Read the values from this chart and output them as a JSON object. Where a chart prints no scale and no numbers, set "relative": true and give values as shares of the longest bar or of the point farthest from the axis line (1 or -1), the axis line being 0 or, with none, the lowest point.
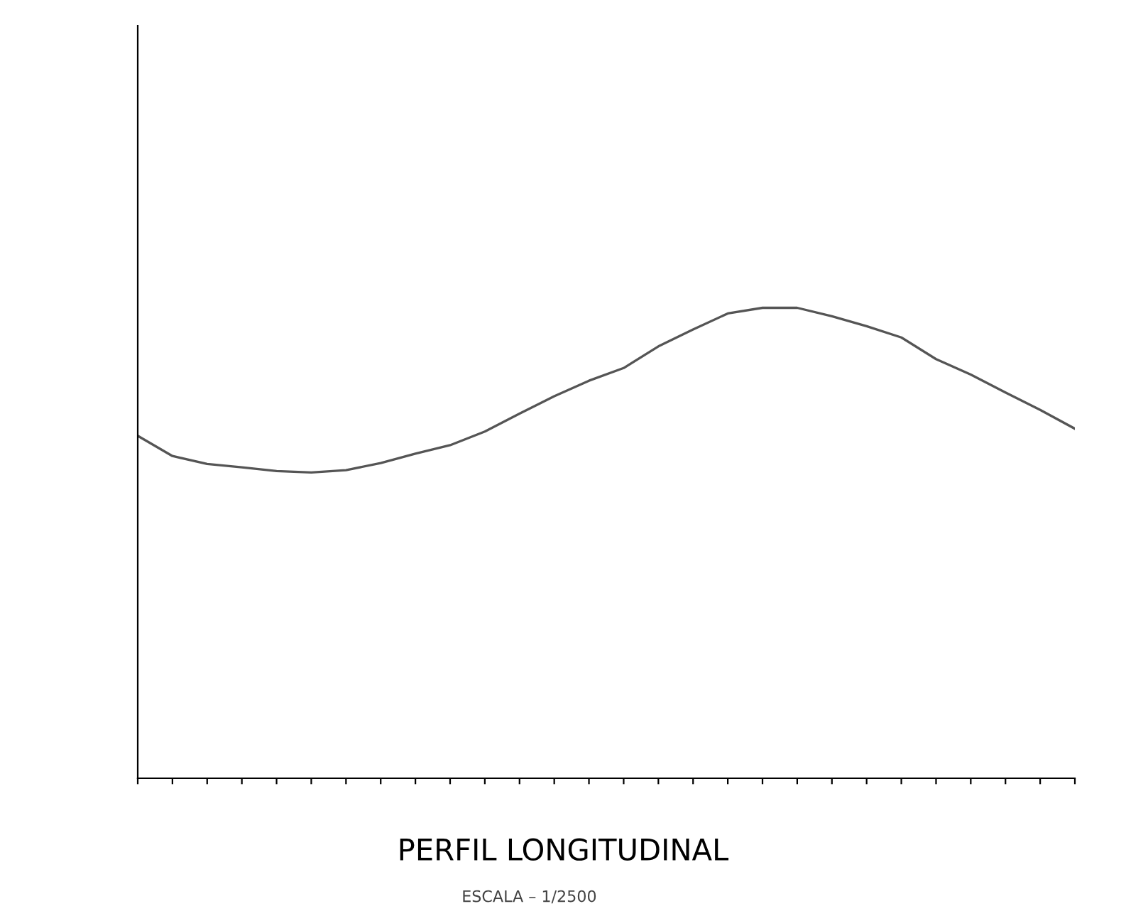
{
  "chart_data": {
    "type": "line",
    "title": "PERFIL LONGITUDINAL",
    "subtitle": "ESCALA – 1/2500",
    "relative": true,
    "categories": [
      null,
      null,
      null,
      null,
      null,
      null,
      null,
      null,
      null,
      null,
      null,
      null,
      null,
      null,
      null,
      null,
      null,
      null,
      null,
      null,
      null,
      null,
      null,
      null,
      null,
      null,
      null,
      null
    ],
    "series": [
      {
        "color": "#555555",
        "values": [
          0.728,
          0.685,
          0.668,
          0.661,
          0.653,
          0.65,
          0.655,
          0.67,
          0.69,
          0.708,
          0.737,
          0.775,
          0.812,
          0.845,
          0.872,
          0.918,
          0.954,
          0.988,
          1.0,
          1.0,
          0.982,
          0.961,
          0.937,
          0.891,
          0.858,
          0.82,
          0.783,
          0.743
        ]
      }
    ],
    "grid": false,
    "legend": false,
    "marker": "none",
    "line_style": "solid"
  }
}
